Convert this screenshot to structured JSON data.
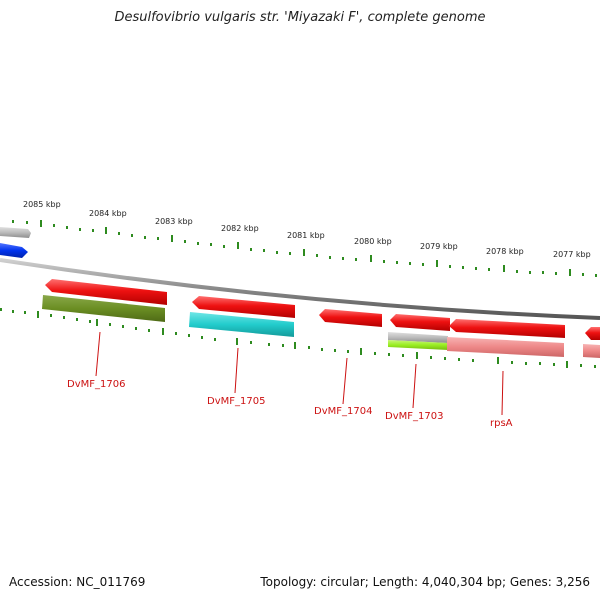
{
  "title": "Desulfovibrio vulgaris str. 'Miyazaki F', complete genome",
  "footer": {
    "accession": "Accession: NC_011769",
    "summary": "Topology: circular; Length: 4,040,304 bp; Genes: 3,256"
  },
  "colors": {
    "background": "#ffffff",
    "backbone": "#888888",
    "tick": "#2e8b1f",
    "gene_forward_partial": "#0033ee",
    "gene_forward_partial_gray": "#bbbbbb",
    "gene_cds": "#ee1111",
    "gene_rna_green": "#6b8e23",
    "gene_rna_cyan": "#22cccc",
    "gene_rna_gray": "#aaaaaa",
    "gene_rna_lime": "#99ee22",
    "gene_rna_pink": "#ee8888",
    "label": "#cc1111"
  },
  "scale": {
    "unit": "kbp",
    "tick_labels": [
      {
        "value": 2085,
        "text": "2085 kbp"
      },
      {
        "value": 2084,
        "text": "2084 kbp"
      },
      {
        "value": 2083,
        "text": "2083 kbp"
      },
      {
        "value": 2082,
        "text": "2082 kbp"
      },
      {
        "value": 2081,
        "text": "2081 kbp"
      },
      {
        "value": 2080,
        "text": "2080 kbp"
      },
      {
        "value": 2079,
        "text": "2079 kbp"
      },
      {
        "value": 2078,
        "text": "2078 kbp"
      },
      {
        "value": 2077,
        "text": "2077 kbp"
      }
    ]
  },
  "genes": [
    {
      "label": "",
      "strand": "forward",
      "color_key": "gene_forward_partial_gray"
    },
    {
      "label": "",
      "strand": "forward",
      "color_key": "gene_forward_partial"
    },
    {
      "label": "DvMF_1706",
      "strand": "reverse",
      "color_key": "gene_cds"
    },
    {
      "label": "DvMF_1705",
      "strand": "reverse",
      "color_key": "gene_cds"
    },
    {
      "label": "DvMF_1704",
      "strand": "reverse",
      "color_key": "gene_cds"
    },
    {
      "label": "DvMF_1703",
      "strand": "reverse",
      "color_key": "gene_cds"
    },
    {
      "label": "rpsA",
      "strand": "reverse",
      "color_key": "gene_cds"
    }
  ]
}
